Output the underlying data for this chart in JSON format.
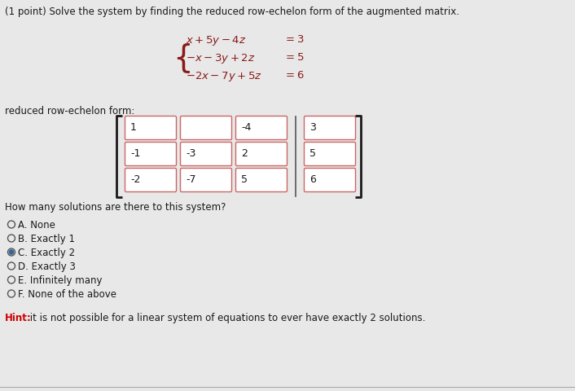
{
  "background_color": "#e8e8e8",
  "title_text": "(1 point) Solve the system by finding the reduced row-echelon form of the augmented matrix.",
  "rref_label": "reduced row-echelon form:",
  "matrix_values": [
    [
      "1",
      "",
      "-4",
      "3"
    ],
    [
      "-1",
      "-3",
      "2",
      "5"
    ],
    [
      "-2",
      "-7",
      "5",
      "6"
    ]
  ],
  "question": "How many solutions are there to this system?",
  "options": [
    [
      "A. None",
      false
    ],
    [
      "B. Exactly 1",
      false
    ],
    [
      "C. Exactly 2",
      true
    ],
    [
      "D. Exactly 3",
      false
    ],
    [
      "E. Infinitely many",
      false
    ],
    [
      "F. None of the above",
      false
    ]
  ],
  "hint_bold": "Hint:",
  "hint_text": " it is not possible for a linear system of equations to ever have exactly 2 solutions.",
  "text_color": "#1a1a1a",
  "eq_color": "#8b1a1a",
  "hint_color": "#cc0000",
  "box_border_color": "#cc6666",
  "box_fill_color": "#ffffff",
  "selected_circle_color": "#336699",
  "bg_color": "#e8e8e8",
  "title_fontsize": 8.5,
  "eq_fontsize": 9.5,
  "label_fontsize": 8.5,
  "matrix_fontsize": 9,
  "question_fontsize": 8.5,
  "option_fontsize": 8.5,
  "hint_fontsize": 8.5
}
